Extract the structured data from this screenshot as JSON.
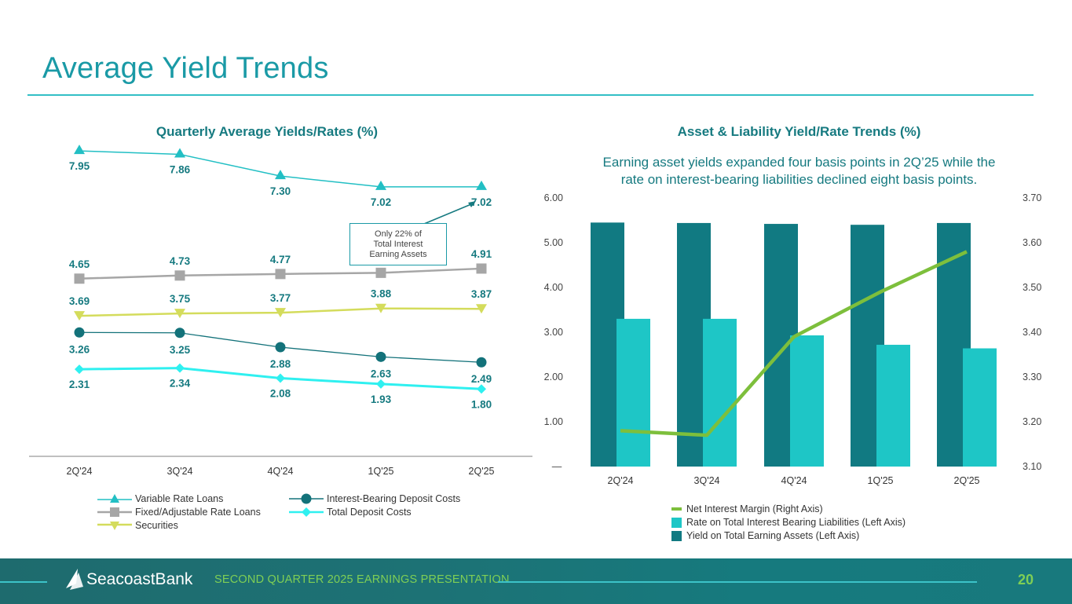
{
  "slide": {
    "title": "Average Yield Trends",
    "page_number": "20",
    "footer_text": "SECOND QUARTER 2025 EARNINGS PRESENTATION",
    "logo_text": "SeacoastBank",
    "logo_icon": "sail-icon"
  },
  "callout": {
    "line1": "Only 22% of",
    "line2": "Total Interest",
    "line3": "Earning Assets"
  },
  "right_subtitle": {
    "line1": "Earning asset yields expanded four basis points in 2Q’25 while the",
    "line2": "rate on interest-bearing liabilities declined eight basis points."
  },
  "chart_data": [
    {
      "type": "line",
      "title": "Quarterly Average Yields/Rates (%)",
      "categories": [
        "2Q'24",
        "3Q'24",
        "4Q'24",
        "1Q'25",
        "2Q'25"
      ],
      "xlabel": "",
      "ylabel": "",
      "grid": false,
      "legend_position": "bottom",
      "series": [
        {
          "name": "Variable Rate Loans",
          "values": [
            7.95,
            7.86,
            7.3,
            7.02,
            7.02
          ],
          "color": "#22bfc4",
          "marker": "triangle-up"
        },
        {
          "name": "Fixed/Adjustable Rate Loans",
          "values": [
            4.65,
            4.73,
            4.77,
            4.8,
            4.91
          ],
          "color": "#a6a6a6",
          "marker": "square"
        },
        {
          "name": "Securities",
          "values": [
            3.69,
            3.75,
            3.77,
            3.88,
            3.87
          ],
          "color": "#d4dc5c",
          "marker": "triangle-down"
        },
        {
          "name": "Interest-Bearing Deposit Costs",
          "values": [
            3.26,
            3.25,
            2.88,
            2.63,
            2.49
          ],
          "color": "#13727a",
          "marker": "circle"
        },
        {
          "name": "Total Deposit Costs",
          "values": [
            2.31,
            2.34,
            2.08,
            1.93,
            1.8
          ],
          "color": "#2ff0f0",
          "marker": "diamond"
        }
      ],
      "label_color": "#167a80"
    },
    {
      "type": "bar",
      "title": "Asset & Liability Yield/Rate Trends (%)",
      "categories": [
        "2Q'24",
        "3Q'24",
        "4Q'24",
        "1Q'25",
        "2Q'25"
      ],
      "left_axis": {
        "ylim": [
          0,
          6
        ],
        "ticks": [
          "—",
          "1.00",
          "2.00",
          "3.00",
          "4.00",
          "5.00",
          "6.00"
        ]
      },
      "right_axis": {
        "ylim": [
          3.1,
          3.7
        ],
        "ticks": [
          "3.10",
          "3.20",
          "3.30",
          "3.40",
          "3.50",
          "3.60",
          "3.70"
        ]
      },
      "grid": false,
      "legend_position": "bottom",
      "series": [
        {
          "name": "Yield on Total Earning Assets (Left Axis)",
          "type": "bar",
          "axis": "left",
          "values": [
            5.45,
            5.44,
            5.42,
            5.4,
            5.44
          ],
          "color": "#117a82"
        },
        {
          "name": "Rate on Total Interest Bearing Liabilities (Left Axis)",
          "type": "bar",
          "axis": "left",
          "values": [
            3.3,
            3.3,
            2.93,
            2.72,
            2.64
          ],
          "color": "#1ec6c6"
        },
        {
          "name": "Net Interest Margin (Right Axis)",
          "type": "line",
          "axis": "right",
          "values": [
            3.18,
            3.17,
            3.39,
            3.49,
            3.58
          ],
          "color": "#7dbf3c"
        }
      ],
      "legend_order": [
        "Net Interest Margin (Right Axis)",
        "Rate on Total Interest Bearing Liabilities (Left Axis)",
        "Yield on Total Earning Assets (Left Axis)"
      ]
    }
  ]
}
